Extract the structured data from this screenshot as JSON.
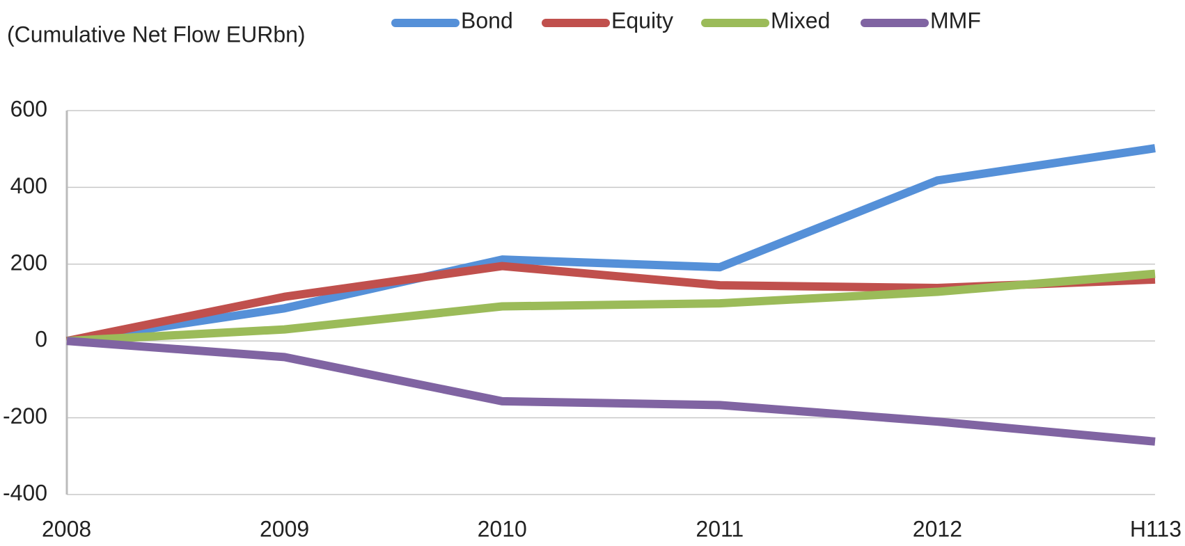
{
  "chart_data": {
    "type": "line",
    "y_label": "(Cumulative Net Flow EURbn)",
    "categories": [
      "2008",
      "2009",
      "2010",
      "2011",
      "2012",
      "H113"
    ],
    "series": [
      {
        "name": "Bond",
        "color": "#5590d8",
        "values": [
          0,
          85,
          212,
          192,
          418,
          502
        ]
      },
      {
        "name": "Equity",
        "color": "#c0504d",
        "values": [
          0,
          115,
          195,
          145,
          138,
          160
        ]
      },
      {
        "name": "Mixed",
        "color": "#9bbb59",
        "values": [
          0,
          30,
          90,
          98,
          128,
          175
        ]
      },
      {
        "name": "MMF",
        "color": "#8064a2",
        "values": [
          0,
          -42,
          -157,
          -167,
          -210,
          -262
        ]
      }
    ],
    "ylim": [
      -400,
      600
    ],
    "yticks": [
      -400,
      -200,
      0,
      200,
      400,
      600
    ],
    "grid": true,
    "legend": "top"
  }
}
